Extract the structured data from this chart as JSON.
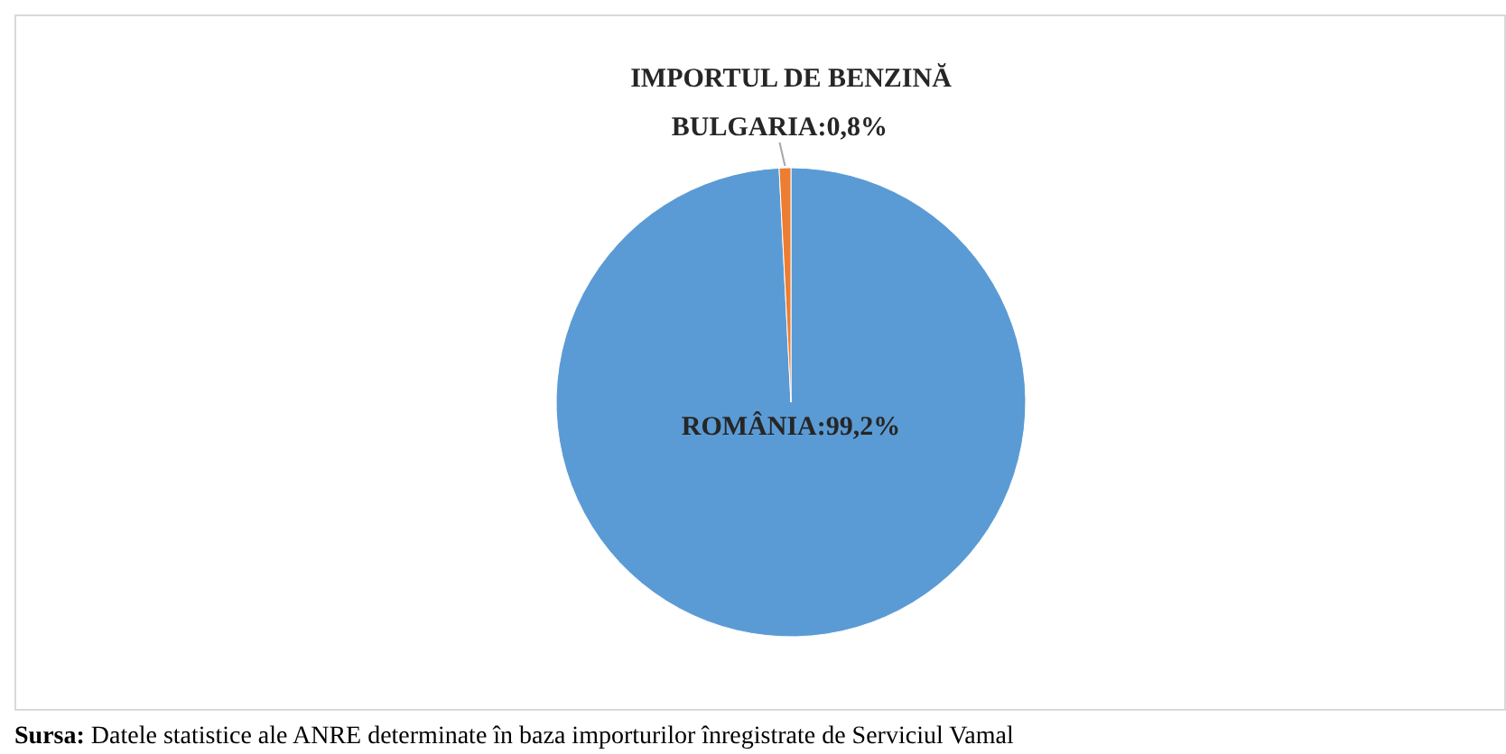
{
  "chart_data": {
    "type": "pie",
    "title": "IMPORTUL DE BENZINĂ",
    "categories": [
      "ROMÂNIA",
      "BULGARIA"
    ],
    "values": [
      99.2,
      0.8
    ],
    "value_labels": [
      "99,2%",
      "0,8%"
    ],
    "colors": [
      "#5b9bd5",
      "#ed7d31"
    ],
    "annotations": [
      "Sursa: Datele statistice ale ANRE determinate în baza importurilor înregistrate de Serviciul Vamal"
    ]
  }
}
